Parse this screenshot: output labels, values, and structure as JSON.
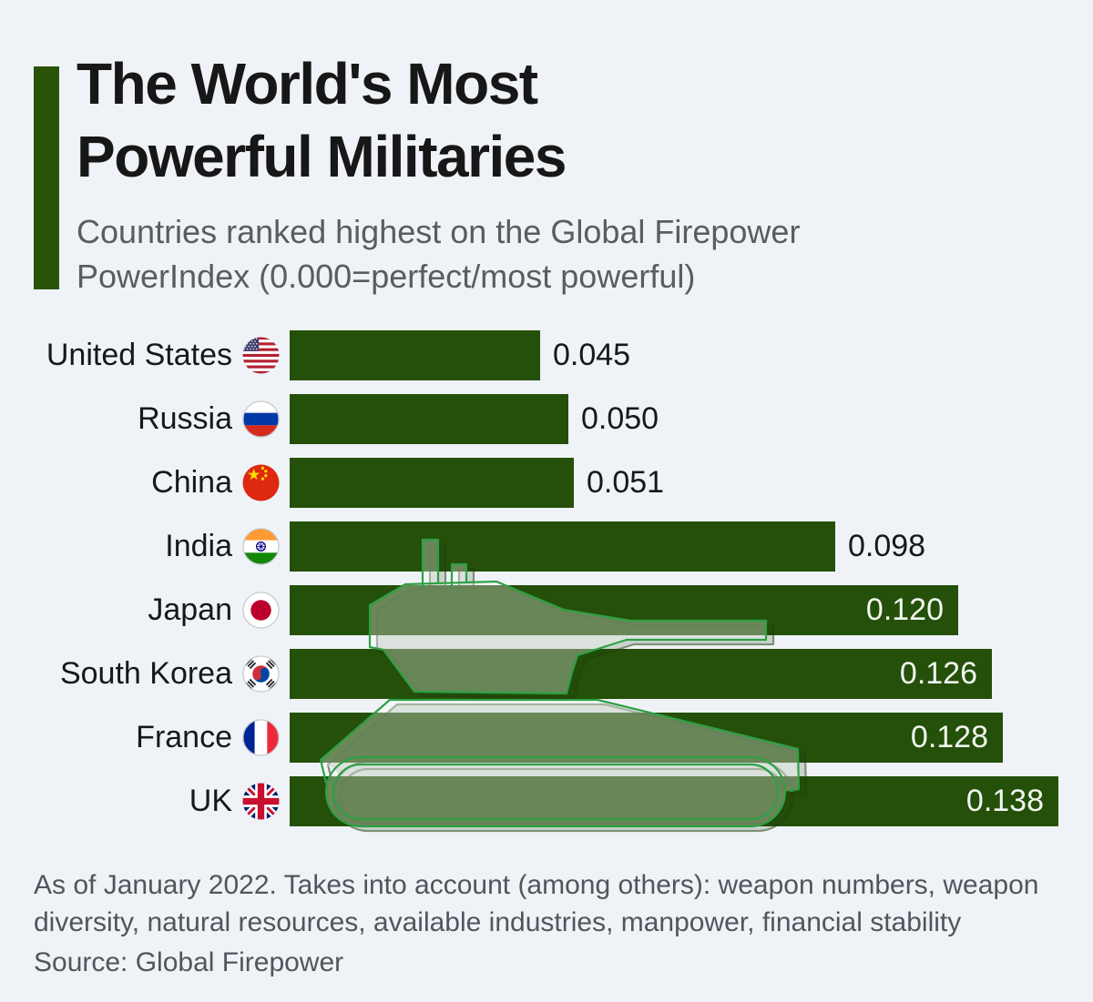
{
  "header": {
    "title": "The World's Most\nPowerful Militaries",
    "subtitle": "Countries ranked highest on the Global Firepower\nPowerIndex (0.000=perfect/most powerful)",
    "accent_color": "#2a5309"
  },
  "chart_data": {
    "type": "bar",
    "orientation": "horizontal",
    "title": "The World's Most Powerful Militaries",
    "subtitle": "Countries ranked highest on the Global Firepower PowerIndex (0.000=perfect/most powerful)",
    "categories": [
      "United States",
      "Russia",
      "China",
      "India",
      "Japan",
      "South Korea",
      "France",
      "UK"
    ],
    "values": [
      0.045,
      0.05,
      0.051,
      0.098,
      0.12,
      0.126,
      0.128,
      0.138
    ],
    "value_labels": [
      "0.045",
      "0.050",
      "0.051",
      "0.098",
      "0.120",
      "0.126",
      "0.128",
      "0.138"
    ],
    "flags": [
      "us",
      "ru",
      "cn",
      "in",
      "jp",
      "kr",
      "fr",
      "uk"
    ],
    "value_label_inside": [
      false,
      false,
      false,
      false,
      true,
      true,
      true,
      true
    ],
    "xlim": [
      0,
      0.138
    ],
    "bar_color": "#24500a",
    "value_color_outside": "#15191d",
    "value_color_inside": "#f1f6ee",
    "grid": false,
    "legend": false,
    "watermark": "tank-silhouette"
  },
  "footer": {
    "note": "As of January 2022. Takes into account (among others): weapon numbers, weapon\ndiversity, natural resources, available industries, manpower, financial stability",
    "source": "Source: Global Firepower"
  },
  "colors": {
    "background": "#eff3f7",
    "bar_green": "#24500a",
    "accent_green": "#2a5309",
    "tank_outline_green": "#2fa044",
    "title_text": "#171717",
    "subtitle_text": "#585d62",
    "footer_text": "#4f565c"
  }
}
